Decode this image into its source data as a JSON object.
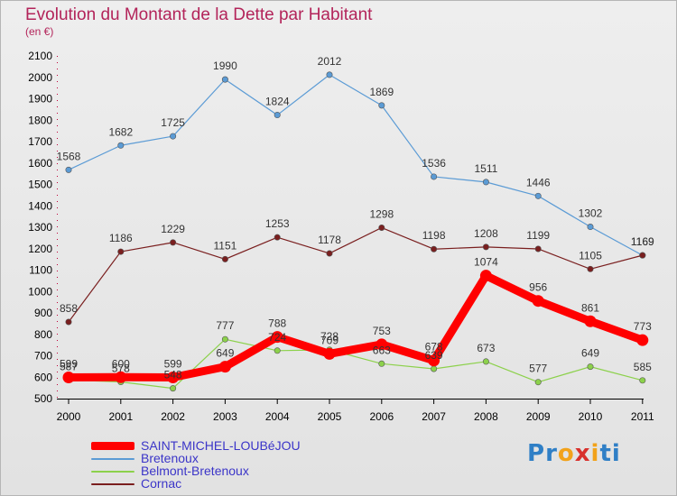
{
  "title": "Evolution du Montant de la Dette par Habitant",
  "unit": "(en €)",
  "logo": {
    "letters": [
      "P",
      "r",
      "o",
      "x",
      "i",
      "t",
      "i"
    ],
    "colors": [
      "#2f7fc6",
      "#2f7fc6",
      "#f2a21a",
      "#d8302c",
      "#f2a21a",
      "#2f7fc6",
      "#2f7fc6"
    ]
  },
  "chart_data": {
    "type": "line",
    "title": "Evolution du Montant de la Dette par Habitant",
    "ylabel": "(en €)",
    "xlabel": "",
    "categories": [
      "2000",
      "2001",
      "2002",
      "2003",
      "2004",
      "2005",
      "2006",
      "2007",
      "2008",
      "2009",
      "2010",
      "2011"
    ],
    "ylim": [
      500,
      2100
    ],
    "yticks": [
      "500",
      "600",
      "700",
      "800",
      "900",
      "1000",
      "1100",
      "1200",
      "1300",
      "1400",
      "1500",
      "1600",
      "1700",
      "1800",
      "1900",
      "2000",
      "2100"
    ],
    "grid": false,
    "legend": "bottom-left",
    "series": [
      {
        "name": "SAINT-MICHEL-LOUBéJOU",
        "color": "#ff0000",
        "values": [
          599,
          600,
          599,
          649,
          788,
          709,
          753,
          678,
          1074,
          956,
          861,
          773
        ],
        "labels": [
          "599",
          "600",
          "599",
          "649",
          "788",
          "709",
          "753",
          "678",
          "1074",
          "956",
          "861",
          "773"
        ]
      },
      {
        "name": "Bretenoux",
        "color": "#5b9bd5",
        "values": [
          1568,
          1682,
          1725,
          1990,
          1824,
          2012,
          1869,
          1536,
          1511,
          1446,
          1302,
          1169
        ],
        "labels": [
          "1568",
          "1682",
          "1725",
          "1990",
          "1824",
          "2012",
          "1869",
          "1536",
          "1511",
          "1446",
          "1302",
          "1169"
        ]
      },
      {
        "name": "Belmont-Bretenoux",
        "color": "#8cd14b",
        "values": [
          587,
          578,
          548,
          777,
          724,
          728,
          663,
          639,
          673,
          577,
          649,
          585
        ],
        "labels": [
          "587",
          "578",
          "548",
          "777",
          "724",
          "728",
          "663",
          "639",
          "673",
          "577",
          "649",
          "585"
        ]
      },
      {
        "name": "Cornac",
        "color": "#7a1f1f",
        "values": [
          858,
          1186,
          1229,
          1151,
          1253,
          1178,
          1298,
          1198,
          1208,
          1199,
          1105,
          1169
        ],
        "labels": [
          "858",
          "1186",
          "1229",
          "1151",
          "1253",
          "1178",
          "1298",
          "1198",
          "1208",
          "1199",
          "1105",
          "1169"
        ]
      }
    ]
  }
}
